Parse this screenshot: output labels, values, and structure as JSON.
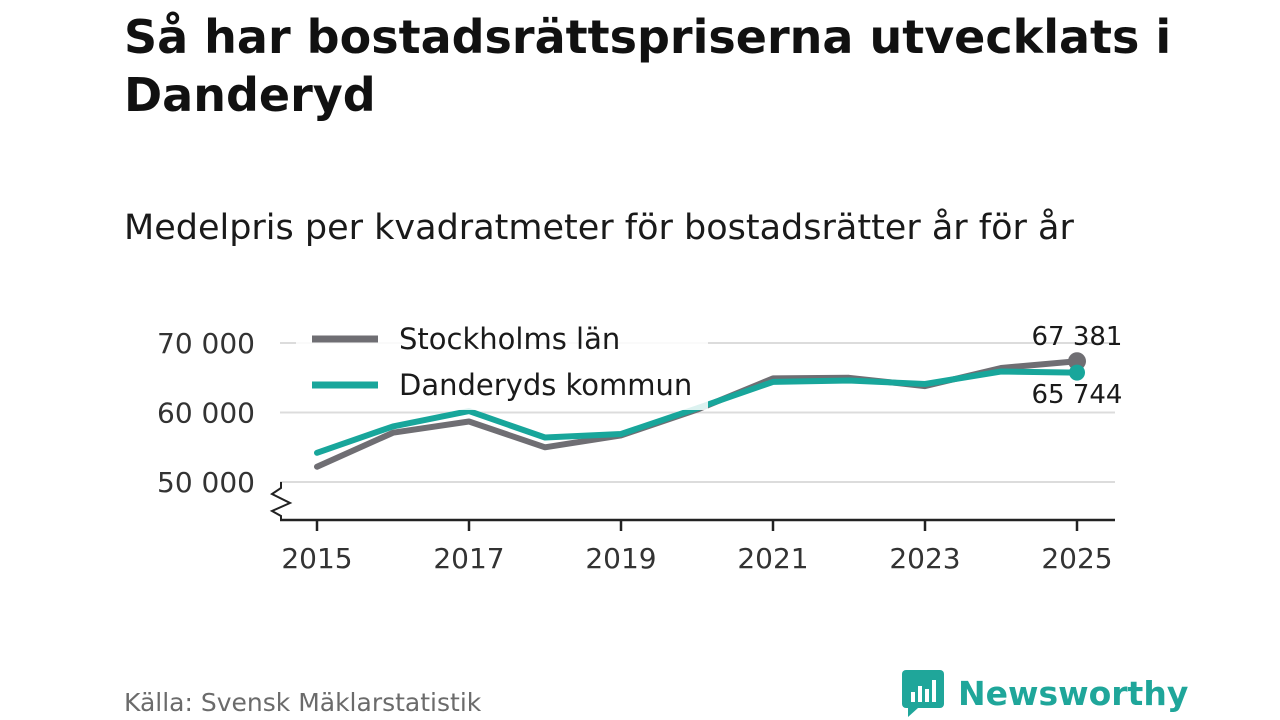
{
  "header": {
    "title": "Så har bostadsrättspriserna utvecklats i Danderyd",
    "subtitle": "Medelpris per kvadratmeter för bostadsrätter år för år"
  },
  "chart_data": {
    "type": "line",
    "title": "Så har bostadsrättspriserna utvecklats i Danderyd",
    "subtitle": "Medelpris per kvadratmeter för bostadsrätter år för år",
    "xlabel": "",
    "ylabel": "",
    "x": [
      2015,
      2016,
      2017,
      2018,
      2019,
      2020,
      2021,
      2022,
      2023,
      2024,
      2025
    ],
    "x_tick_labels": [
      "2015",
      "2017",
      "2019",
      "2021",
      "2023",
      "2025"
    ],
    "y_tick_values": [
      50000,
      60000,
      70000
    ],
    "y_tick_labels": [
      "50 000",
      "60 000",
      "70 000"
    ],
    "ylim": [
      47000,
      71000
    ],
    "y_axis_break": true,
    "grid": true,
    "legend_position": "top-left",
    "series": [
      {
        "name": "Stockholms län",
        "color": "#6f6e73",
        "values": [
          52200,
          57100,
          58700,
          55000,
          56700,
          60400,
          64900,
          65000,
          63800,
          66400,
          67381
        ],
        "end_label": "67 381"
      },
      {
        "name": "Danderyds kommun",
        "color": "#18a69b",
        "values": [
          54200,
          58000,
          60200,
          56400,
          56900,
          60600,
          64400,
          64600,
          64100,
          65900,
          65744
        ],
        "end_label": "65 744"
      }
    ]
  },
  "footer": {
    "source": "Källa: Svensk Mäklarstatistik",
    "brand": "Newsworthy",
    "brand_color": "#1fa69a"
  }
}
